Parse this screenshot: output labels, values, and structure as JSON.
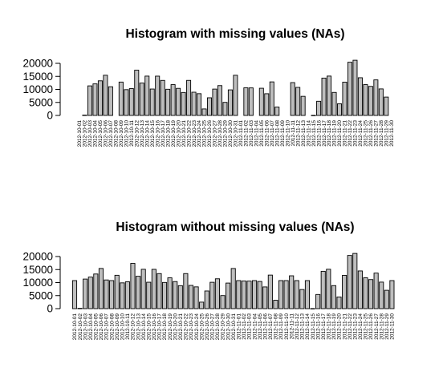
{
  "chart_data": [
    {
      "type": "bar",
      "title": "Histogram with missing values (NAs)",
      "xlabel": "",
      "ylabel": "",
      "ylim": [
        0,
        22000
      ],
      "yticks": [
        0,
        5000,
        10000,
        15000,
        20000
      ],
      "grid": false,
      "categories": [
        "2012-10-01",
        "2012-10-02",
        "2012-10-03",
        "2012-10-04",
        "2012-10-05",
        "2012-10-06",
        "2012-10-07",
        "2012-10-08",
        "2012-10-09",
        "2012-10-10",
        "2012-10-11",
        "2012-10-12",
        "2012-10-13",
        "2012-10-14",
        "2012-10-15",
        "2012-10-16",
        "2012-10-17",
        "2012-10-18",
        "2012-10-19",
        "2012-10-20",
        "2012-10-21",
        "2012-10-22",
        "2012-10-23",
        "2012-10-24",
        "2012-10-25",
        "2012-10-26",
        "2012-10-27",
        "2012-10-28",
        "2012-10-29",
        "2012-10-30",
        "2012-10-31",
        "2012-11-01",
        "2012-11-02",
        "2012-11-03",
        "2012-11-04",
        "2012-11-05",
        "2012-11-06",
        "2012-11-07",
        "2012-11-08",
        "2012-11-09",
        "2012-11-10",
        "2012-11-11",
        "2012-11-12",
        "2012-11-13",
        "2012-11-14",
        "2012-11-15",
        "2012-11-16",
        "2012-11-17",
        "2012-11-18",
        "2012-11-19",
        "2012-11-20",
        "2012-11-21",
        "2012-11-22",
        "2012-11-23",
        "2012-11-24",
        "2012-11-25",
        "2012-11-26",
        "2012-11-27",
        "2012-11-28",
        "2012-11-29",
        "2012-11-30"
      ],
      "values": [
        null,
        126,
        11352,
        12116,
        13294,
        15420,
        11015,
        null,
        12811,
        9900,
        10304,
        17382,
        12426,
        15098,
        10139,
        15084,
        13452,
        10056,
        11829,
        10395,
        8821,
        13460,
        8918,
        8355,
        2492,
        6778,
        10119,
        11458,
        5018,
        9819,
        15414,
        null,
        10600,
        10571,
        null,
        10439,
        8334,
        12883,
        3219,
        null,
        null,
        12608,
        10765,
        7336,
        null,
        41,
        5441,
        14339,
        15110,
        8841,
        4472,
        12787,
        20427,
        21194,
        14478,
        11834,
        11162,
        13646,
        10183,
        7047,
        null
      ]
    },
    {
      "type": "bar",
      "title": "Histogram without missing values (NAs)",
      "xlabel": "",
      "ylabel": "",
      "ylim": [
        0,
        22000
      ],
      "yticks": [
        0,
        5000,
        10000,
        15000,
        20000
      ],
      "grid": false,
      "categories": [
        "2012-10-01",
        "2012-10-02",
        "2012-10-03",
        "2012-10-04",
        "2012-10-05",
        "2012-10-06",
        "2012-10-07",
        "2012-10-08",
        "2012-10-09",
        "2012-10-10",
        "2012-10-11",
        "2012-10-12",
        "2012-10-13",
        "2012-10-14",
        "2012-10-15",
        "2012-10-16",
        "2012-10-17",
        "2012-10-18",
        "2012-10-19",
        "2012-10-20",
        "2012-10-21",
        "2012-10-22",
        "2012-10-23",
        "2012-10-24",
        "2012-10-25",
        "2012-10-26",
        "2012-10-27",
        "2012-10-28",
        "2012-10-29",
        "2012-10-30",
        "2012-10-31",
        "2012-11-01",
        "2012-11-02",
        "2012-11-03",
        "2012-11-04",
        "2012-11-05",
        "2012-11-06",
        "2012-11-07",
        "2012-11-08",
        "2012-11-09",
        "2012-11-10",
        "2012-11-11",
        "2012-11-12",
        "2012-11-13",
        "2012-11-14",
        "2012-11-15",
        "2012-11-16",
        "2012-11-17",
        "2012-11-18",
        "2012-11-19",
        "2012-11-20",
        "2012-11-21",
        "2012-11-22",
        "2012-11-23",
        "2012-11-24",
        "2012-11-25",
        "2012-11-26",
        "2012-11-27",
        "2012-11-28",
        "2012-11-29",
        "2012-11-30"
      ],
      "values": [
        10766,
        126,
        11352,
        12116,
        13294,
        15420,
        11015,
        10766,
        12811,
        9900,
        10304,
        17382,
        12426,
        15098,
        10139,
        15084,
        13452,
        10056,
        11829,
        10395,
        8821,
        13460,
        8918,
        8355,
        2492,
        6778,
        10119,
        11458,
        5018,
        9819,
        15414,
        10766,
        10600,
        10571,
        10766,
        10439,
        8334,
        12883,
        3219,
        10766,
        10766,
        12608,
        10765,
        7336,
        10766,
        41,
        5441,
        14339,
        15110,
        8841,
        4472,
        12787,
        20427,
        21194,
        14478,
        11834,
        11162,
        13646,
        10183,
        7047,
        10766
      ]
    }
  ]
}
